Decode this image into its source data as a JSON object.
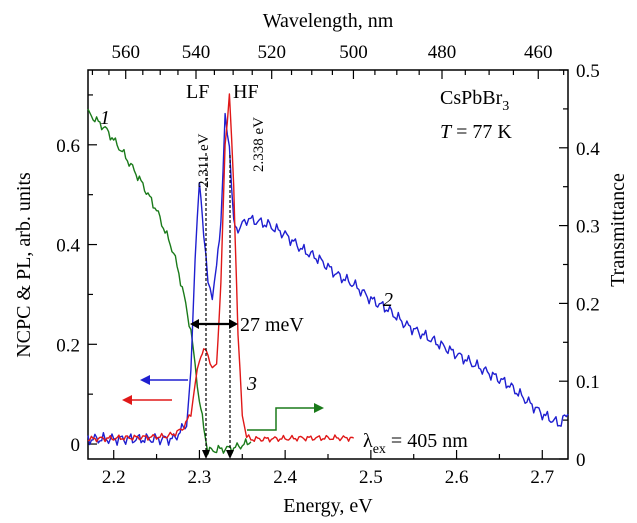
{
  "chart_data": {
    "type": "line",
    "xlabel": "Energy, eV",
    "ylabel_left": "NCPC & PL, arb. units",
    "ylabel_right": "Transmittance",
    "xlabel_top": "Wavelength, nm",
    "xlim": [
      2.17,
      2.73
    ],
    "ylim_left": [
      -0.03,
      0.75
    ],
    "ylim_right": [
      0,
      0.5
    ],
    "x_ticks": [
      "2.2",
      "2.3",
      "2.4",
      "2.5",
      "2.6",
      "2.7"
    ],
    "y_left_ticks": [
      "0",
      "0.2",
      "0.4",
      "0.6"
    ],
    "y_right_ticks": [
      "0",
      "0.1",
      "0.2",
      "0.3",
      "0.4",
      "0.5"
    ],
    "top_ticks": [
      "560",
      "540",
      "520",
      "500",
      "480",
      "460"
    ],
    "grid": false,
    "legend": "none",
    "series": [
      {
        "label": "1",
        "color": "#1a7a1a",
        "axis": "right",
        "x": [
          2.17,
          2.19,
          2.21,
          2.23,
          2.25,
          2.27,
          2.28,
          2.29,
          2.295,
          2.3,
          2.305,
          2.31,
          2.32,
          2.34,
          2.36
        ],
        "y": [
          0.445,
          0.425,
          0.395,
          0.36,
          0.32,
          0.265,
          0.22,
          0.165,
          0.12,
          0.075,
          0.04,
          0.01,
          0.012,
          0.014,
          0.022
        ]
      },
      {
        "label": "2",
        "color": "#1f1fd0",
        "axis": "left",
        "x": [
          2.17,
          2.27,
          2.285,
          2.29,
          2.295,
          2.3,
          2.305,
          2.31,
          2.315,
          2.32,
          2.325,
          2.33,
          2.335,
          2.34,
          2.345,
          2.35,
          2.355,
          2.36,
          2.38,
          2.4,
          2.42,
          2.44,
          2.46,
          2.48,
          2.5,
          2.52,
          2.54,
          2.56,
          2.58,
          2.6,
          2.62,
          2.64,
          2.66,
          2.68,
          2.7,
          2.72,
          2.73
        ],
        "y": [
          0.01,
          0.01,
          0.04,
          0.14,
          0.38,
          0.52,
          0.43,
          0.32,
          0.3,
          0.35,
          0.45,
          0.65,
          0.6,
          0.44,
          0.43,
          0.44,
          0.45,
          0.45,
          0.44,
          0.42,
          0.39,
          0.37,
          0.34,
          0.32,
          0.29,
          0.27,
          0.24,
          0.22,
          0.2,
          0.18,
          0.16,
          0.14,
          0.12,
          0.09,
          0.06,
          0.04,
          0.06
        ]
      },
      {
        "label": "3",
        "color": "#e01818",
        "axis": "left",
        "x": [
          2.17,
          2.26,
          2.27,
          2.28,
          2.29,
          2.295,
          2.3,
          2.305,
          2.31,
          2.315,
          2.32,
          2.325,
          2.33,
          2.335,
          2.34,
          2.345,
          2.35,
          2.355,
          2.36,
          2.38,
          2.42,
          2.48
        ],
        "y": [
          0.01,
          0.015,
          0.02,
          0.03,
          0.06,
          0.12,
          0.17,
          0.19,
          0.18,
          0.15,
          0.16,
          0.32,
          0.6,
          0.7,
          0.52,
          0.22,
          0.06,
          0.015,
          0.01,
          0.01,
          0.012,
          0.012
        ]
      }
    ],
    "annotations": {
      "lf": "LF",
      "hf": "HF",
      "lf_energy": "2.311 eV",
      "hf_energy": "2.338 eV",
      "material": "CsPbBr",
      "material_sub": "3",
      "temp_T": "T",
      "temp_value": " = 77 K",
      "fwhm": "27 meV",
      "lambda_symbol": "λ",
      "lambda_sub": "ex",
      "lambda_value": " = 405 nm",
      "curve1": "1",
      "curve2": "2",
      "curve3": "3"
    }
  }
}
